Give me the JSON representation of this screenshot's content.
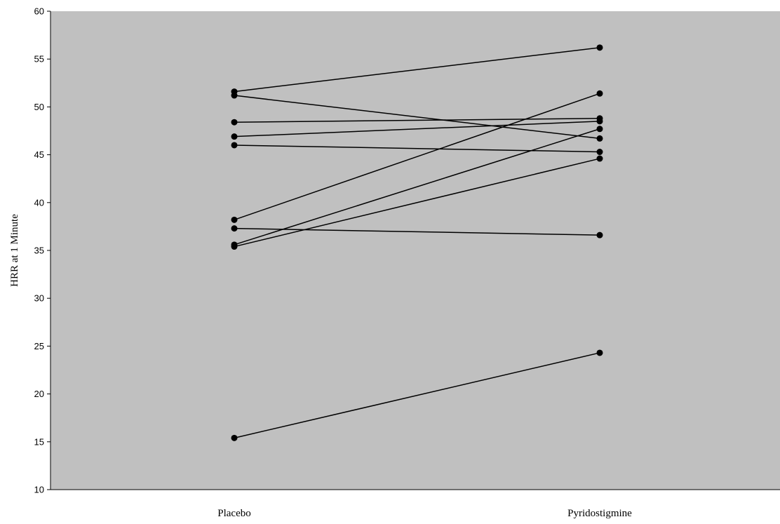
{
  "chart_data": {
    "type": "line",
    "title": "",
    "xlabel": "",
    "ylabel": "HRR at 1 Minute",
    "categories": [
      "Placebo",
      "Pyridostigmine"
    ],
    "ylim": [
      10,
      60
    ],
    "yticks": [
      10,
      15,
      20,
      25,
      30,
      35,
      40,
      45,
      50,
      55,
      60
    ],
    "grid": false,
    "legend": "none",
    "colors": {
      "plot_background": "#c0c0c0",
      "line": "#000000",
      "marker": "#000000"
    },
    "series": [
      {
        "values": [
          51.6,
          56.2
        ]
      },
      {
        "values": [
          51.2,
          46.7
        ]
      },
      {
        "values": [
          48.4,
          48.8
        ]
      },
      {
        "values": [
          46.9,
          48.5
        ]
      },
      {
        "values": [
          46.0,
          45.3
        ]
      },
      {
        "values": [
          38.2,
          51.4
        ]
      },
      {
        "values": [
          37.3,
          36.6
        ]
      },
      {
        "values": [
          35.6,
          47.7
        ]
      },
      {
        "values": [
          35.4,
          44.6
        ]
      },
      {
        "values": [
          15.4,
          24.3
        ]
      }
    ]
  }
}
